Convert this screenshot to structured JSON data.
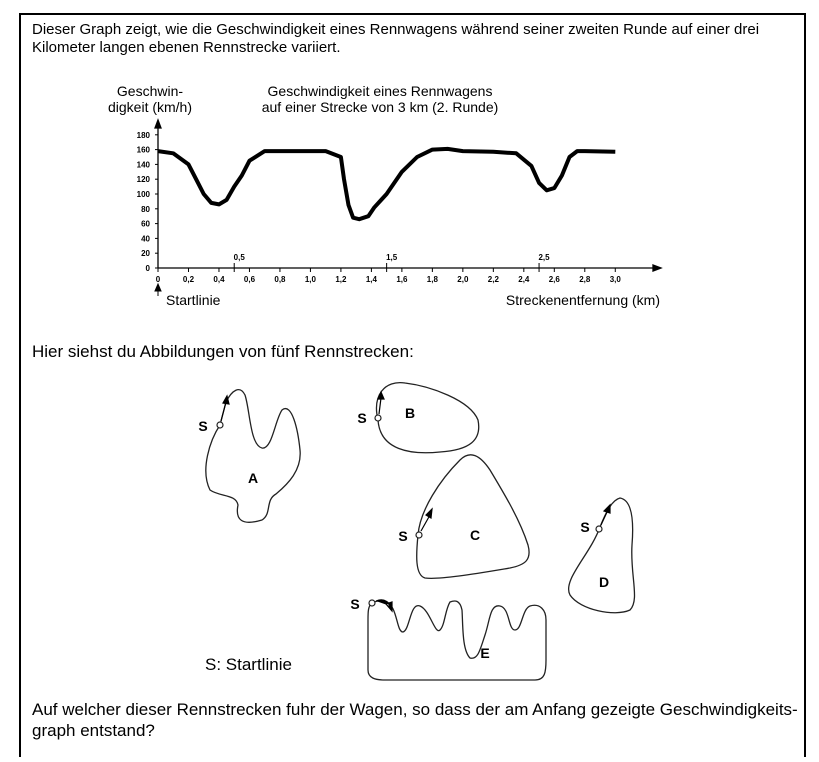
{
  "intro": [
    "Dieser Graph zeigt, wie die Geschwindigkeit eines Rennwagens während seiner zweiten Runde auf einer drei",
    "Kilometer langen ebenen Rennstrecke variiert."
  ],
  "chart_data": {
    "type": "line",
    "title": [
      "Geschwindigkeit eines Rennwagens",
      "auf einer Strecke von 3 km (2. Runde)"
    ],
    "y_label": [
      "Geschwin-",
      "digkeit (km/h)"
    ],
    "x_label": "Streckenentfernung (km)",
    "start_label": "Startlinie",
    "x": [
      0,
      0.1,
      0.2,
      0.25,
      0.3,
      0.35,
      0.4,
      0.45,
      0.5,
      0.55,
      0.6,
      0.7,
      0.8,
      1.0,
      1.1,
      1.2,
      1.22,
      1.25,
      1.28,
      1.32,
      1.38,
      1.42,
      1.5,
      1.6,
      1.7,
      1.8,
      1.9,
      2.0,
      2.2,
      2.35,
      2.45,
      2.5,
      2.55,
      2.6,
      2.65,
      2.7,
      2.75,
      2.8,
      3.0
    ],
    "series": [
      {
        "color": "#000000",
        "values": [
          158,
          155,
          140,
          120,
          100,
          88,
          86,
          92,
          110,
          125,
          145,
          158,
          158,
          158,
          158,
          150,
          120,
          85,
          68,
          66,
          70,
          82,
          100,
          130,
          150,
          160,
          161,
          158,
          157,
          155,
          138,
          115,
          105,
          108,
          125,
          150,
          158,
          158,
          157
        ]
      }
    ],
    "xlim": [
      0,
      3.3
    ],
    "ylim": [
      0,
      200
    ],
    "xticks": [
      0,
      {
        "value": 0.2,
        "label": "0,2"
      },
      {
        "value": 0.4,
        "label": "0,4"
      },
      {
        "value": 0.6,
        "label": "0,6"
      },
      {
        "value": 0.8,
        "label": "0,8"
      },
      {
        "value": 1.0,
        "label": "1,0"
      },
      {
        "value": 1.2,
        "label": "1,2"
      },
      {
        "value": 1.4,
        "label": "1,4"
      },
      {
        "value": 1.6,
        "label": "1,6"
      },
      {
        "value": 1.8,
        "label": "1,8"
      },
      {
        "value": 2.0,
        "label": "2,0"
      },
      {
        "value": 2.2,
        "label": "2,2"
      },
      {
        "value": 2.4,
        "label": "2,4"
      },
      {
        "value": 2.6,
        "label": "2,6"
      },
      {
        "value": 2.8,
        "label": "2,8"
      },
      {
        "value": 3.0,
        "label": "3,0"
      }
    ],
    "xticks_mid": [
      {
        "value": 0.5,
        "label": "0,5"
      },
      {
        "value": 1.5,
        "label": "1,5"
      },
      {
        "value": 2.5,
        "label": "2,5"
      }
    ],
    "yticks": [
      0,
      20,
      40,
      60,
      80,
      100,
      120,
      140,
      160,
      180
    ]
  },
  "tracks_heading": "Hier siehst du Abbildungen von fünf Rennstrecken:",
  "tracks": [
    {
      "name": "A",
      "start": "S"
    },
    {
      "name": "B",
      "start": "S"
    },
    {
      "name": "C",
      "start": "S"
    },
    {
      "name": "D",
      "start": "S"
    },
    {
      "name": "E",
      "start": "S"
    }
  ],
  "legend": "S: Startlinie",
  "question": [
    "Auf welcher dieser Rennstrecken fuhr der Wagen, so dass der am Anfang gezeigte Geschwindigkeits-",
    "graph entstand?"
  ]
}
